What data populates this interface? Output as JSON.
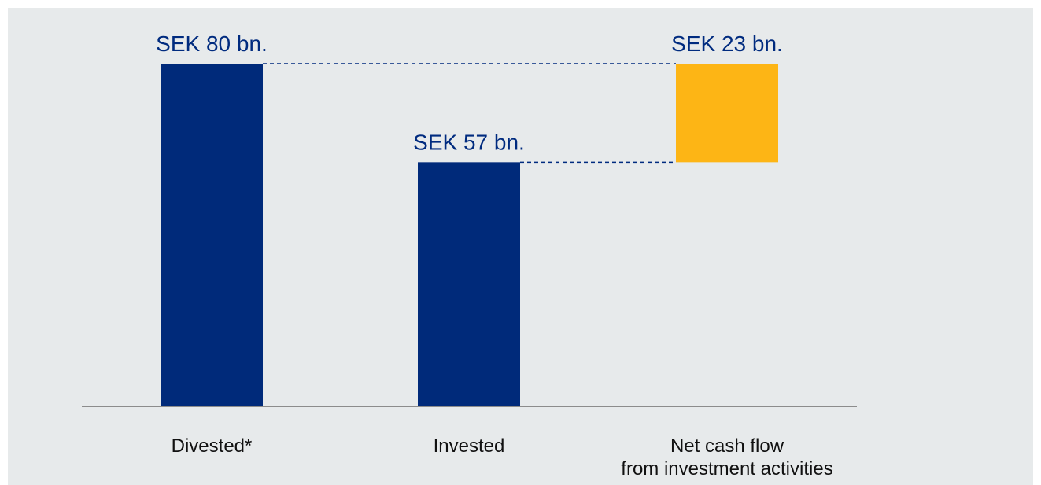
{
  "chart_data": {
    "type": "waterfall",
    "categories": [
      "Divested*",
      "Invested",
      "Net cash flow\nfrom investment activities"
    ],
    "values": [
      80,
      57,
      23
    ],
    "value_labels": [
      "SEK 80 bn.",
      "SEK 57 bn.",
      "SEK 23 bn."
    ],
    "colors": [
      "#002a7a",
      "#002a7a",
      "#fdb515"
    ]
  }
}
